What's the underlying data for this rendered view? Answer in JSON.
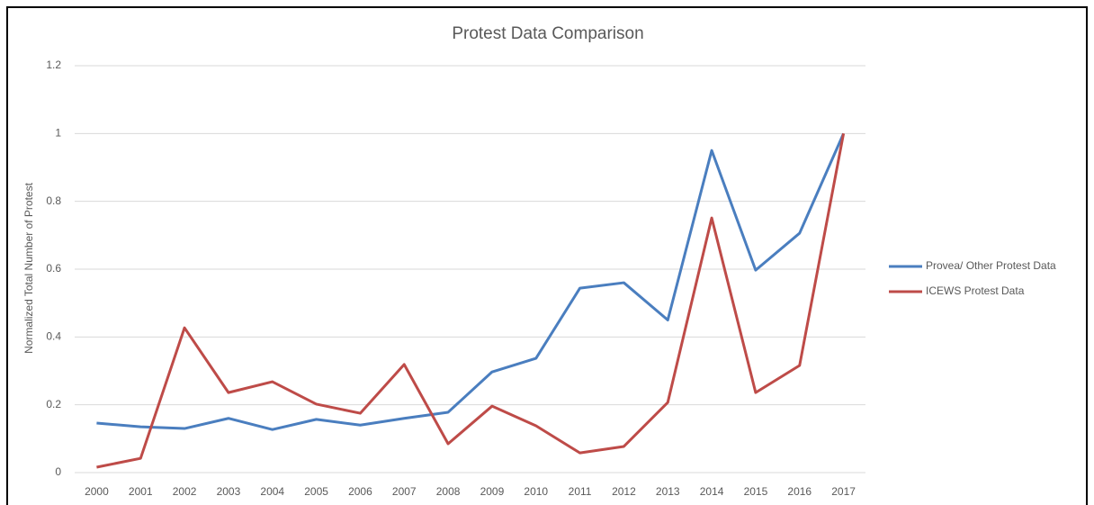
{
  "chart_data": {
    "type": "line",
    "title": "Protest Data Comparison",
    "y_label": "Normalized Total Number of Protest",
    "categories": [
      "2000",
      "2001",
      "2002",
      "2003",
      "2004",
      "2005",
      "2006",
      "2007",
      "2008",
      "2009",
      "2010",
      "2011",
      "2012",
      "2013",
      "2014",
      "2015",
      "2016",
      "2017"
    ],
    "series": [
      {
        "name": "Provea/ Other Protest Data",
        "color": "#4a7ebf",
        "values": [
          0.146,
          0.135,
          0.13,
          0.16,
          0.127,
          0.157,
          0.14,
          0.16,
          0.178,
          0.297,
          0.337,
          0.544,
          0.56,
          0.45,
          0.95,
          0.597,
          0.706,
          1
        ]
      },
      {
        "name": "ICEWS Protest Data",
        "color": "#be4b48",
        "values": [
          0.016,
          0.042,
          0.427,
          0.236,
          0.268,
          0.202,
          0.175,
          0.319,
          0.085,
          0.196,
          0.138,
          0.058,
          0.077,
          0.207,
          0.751,
          0.236,
          0.316,
          1
        ]
      }
    ],
    "ylim": [
      0,
      1.2
    ],
    "yticks": [
      0,
      0.2,
      0.4,
      0.6,
      0.8,
      1,
      1.2
    ],
    "grid": true,
    "legend": "right"
  }
}
